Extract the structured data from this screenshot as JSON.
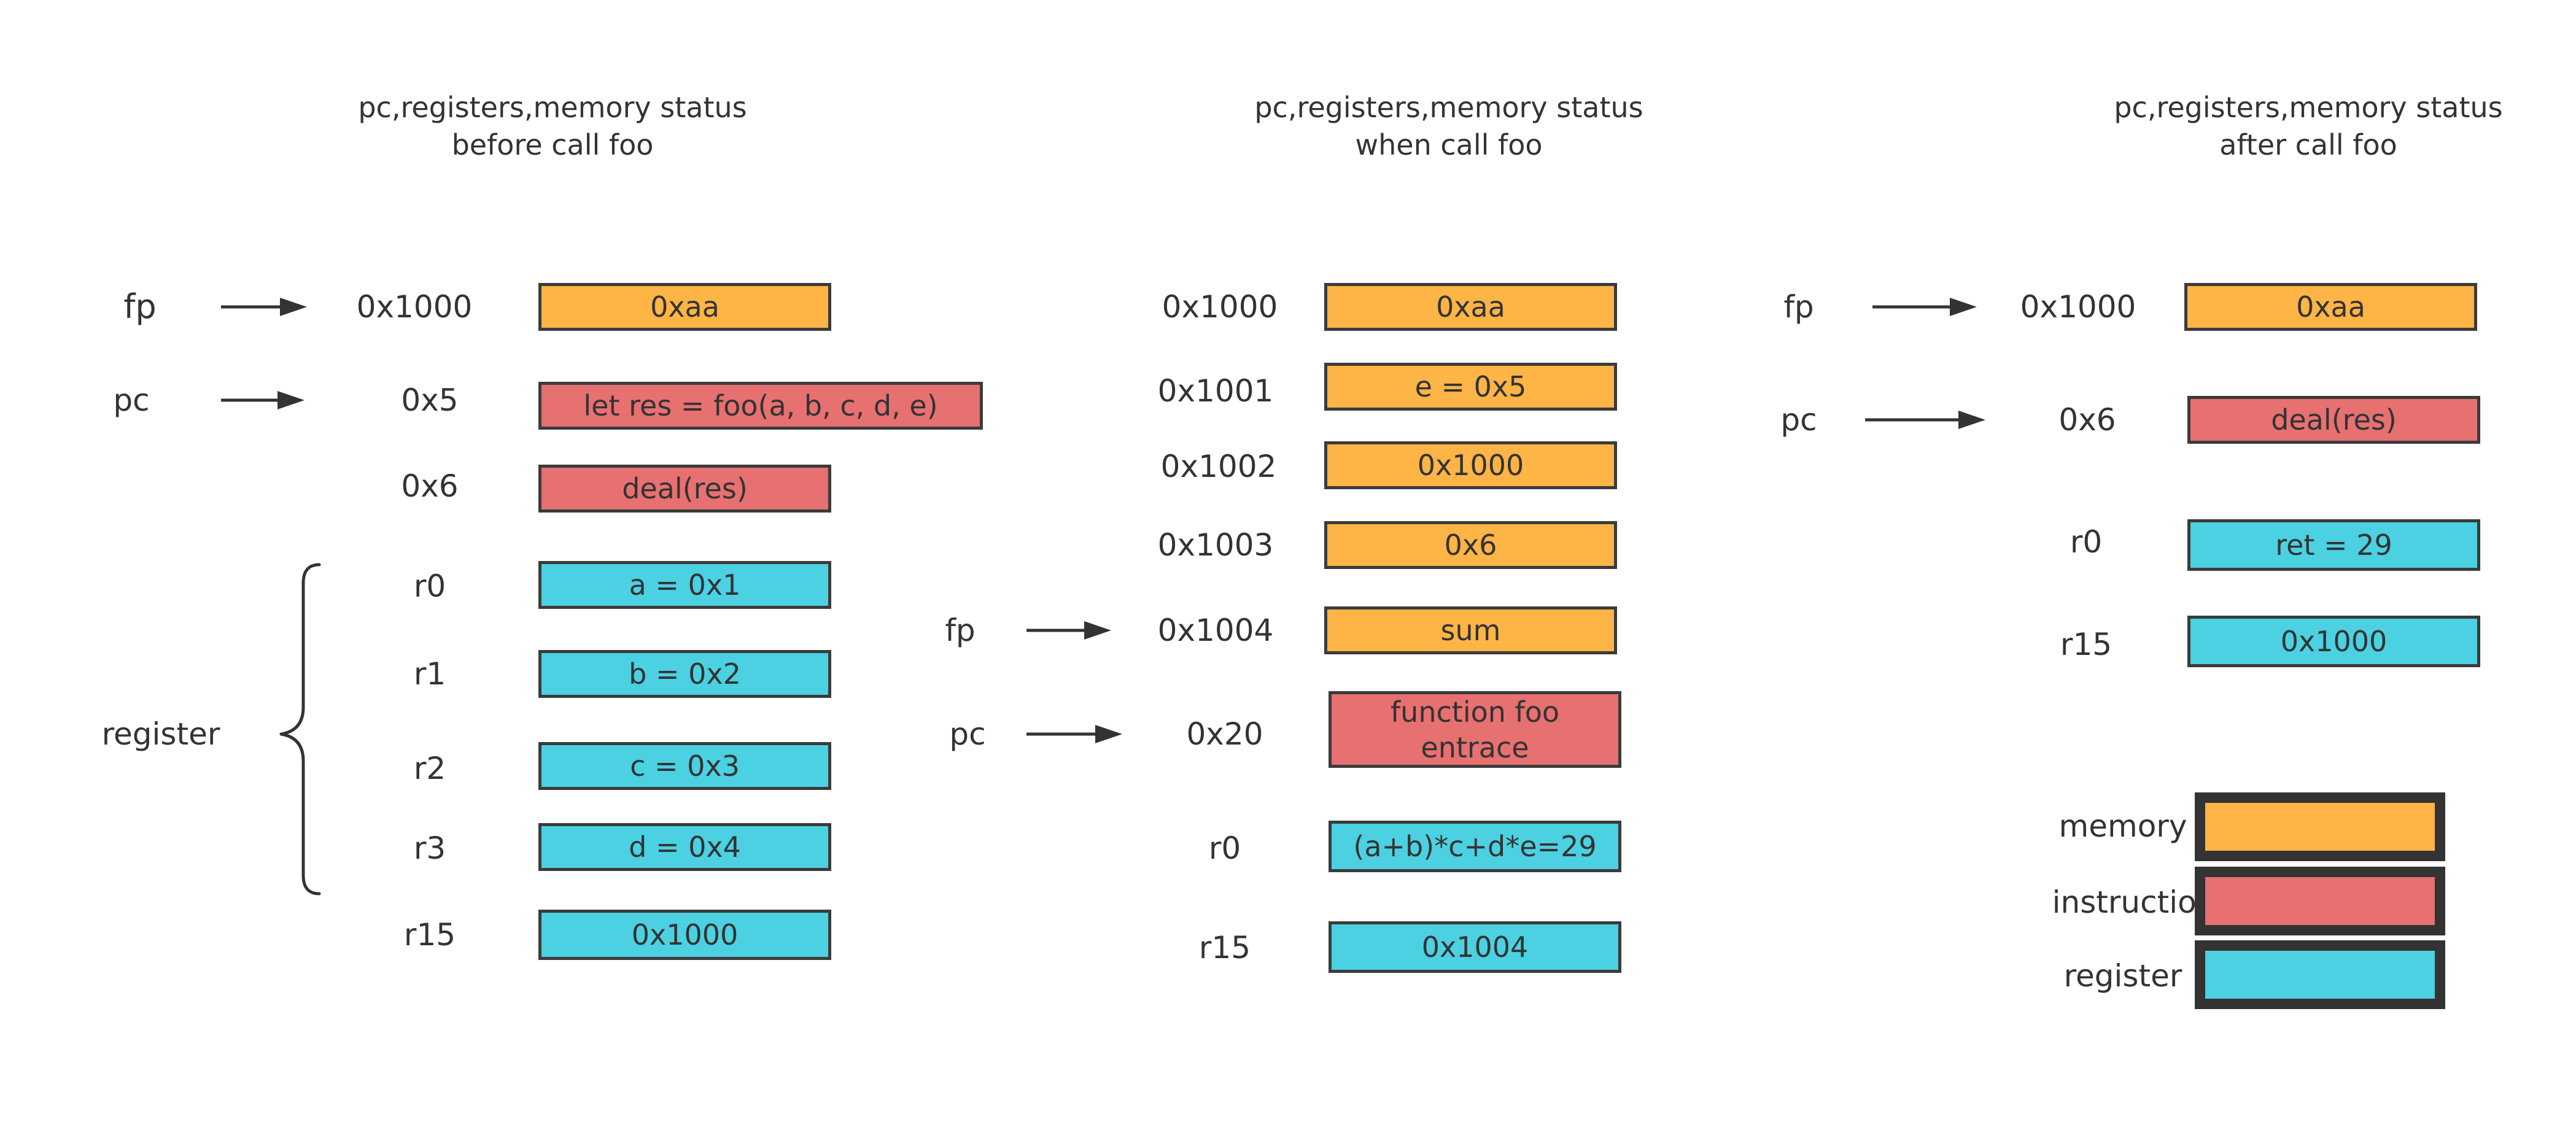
{
  "colors": {
    "memory": "#ffb446",
    "instruction": "#e77071",
    "register": "#4bd1e1",
    "stroke": "#3b3b3b",
    "text": "#333333"
  },
  "panels": {
    "before": {
      "title_line1": "pc,registers,memory status",
      "title_line2": "before call foo",
      "fp_label": "fp",
      "pc_label": "pc",
      "register_group_label": "register",
      "rows": [
        {
          "addr": "0x1000",
          "value": "0xaa",
          "kind": "memory"
        },
        {
          "addr": "0x5",
          "value": "let res = foo(a, b, c, d, e)",
          "kind": "instruction"
        },
        {
          "addr": "0x6",
          "value": "deal(res)",
          "kind": "instruction"
        },
        {
          "addr": "r0",
          "value": "a = 0x1",
          "kind": "register"
        },
        {
          "addr": "r1",
          "value": "b = 0x2",
          "kind": "register"
        },
        {
          "addr": "r2",
          "value": "c = 0x3",
          "kind": "register"
        },
        {
          "addr": "r3",
          "value": "d = 0x4",
          "kind": "register"
        },
        {
          "addr": "r15",
          "value": "0x1000",
          "kind": "register"
        }
      ]
    },
    "during": {
      "title_line1": "pc,registers,memory status",
      "title_line2": "when call foo",
      "fp_label": "fp",
      "pc_label": "pc",
      "rows": [
        {
          "addr": "0x1000",
          "value": "0xaa",
          "kind": "memory"
        },
        {
          "addr": "0x1001",
          "value": "e = 0x5",
          "kind": "memory"
        },
        {
          "addr": "0x1002",
          "value": "0x1000",
          "kind": "memory"
        },
        {
          "addr": "0x1003",
          "value": "0x6",
          "kind": "memory"
        },
        {
          "addr": "0x1004",
          "value": "sum",
          "kind": "memory"
        },
        {
          "addr": "0x20",
          "value_line1": "function foo",
          "value_line2": "entrace",
          "kind": "instruction"
        },
        {
          "addr": "r0",
          "value": "(a+b)*c+d*e=29",
          "kind": "register"
        },
        {
          "addr": "r15",
          "value": "0x1004",
          "kind": "register"
        }
      ]
    },
    "after": {
      "title_line1": "pc,registers,memory status",
      "title_line2": "after call foo",
      "fp_label": "fp",
      "pc_label": "pc",
      "rows": [
        {
          "addr": "0x1000",
          "value": "0xaa",
          "kind": "memory"
        },
        {
          "addr": "0x6",
          "value": "deal(res)",
          "kind": "instruction"
        },
        {
          "addr": "r0",
          "value": "ret = 29",
          "kind": "register"
        },
        {
          "addr": "r15",
          "value": "0x1000",
          "kind": "register"
        }
      ]
    }
  },
  "legend": [
    {
      "label": "memory",
      "kind": "memory"
    },
    {
      "label": "instruction",
      "kind": "instruction"
    },
    {
      "label": "register",
      "kind": "register"
    }
  ]
}
